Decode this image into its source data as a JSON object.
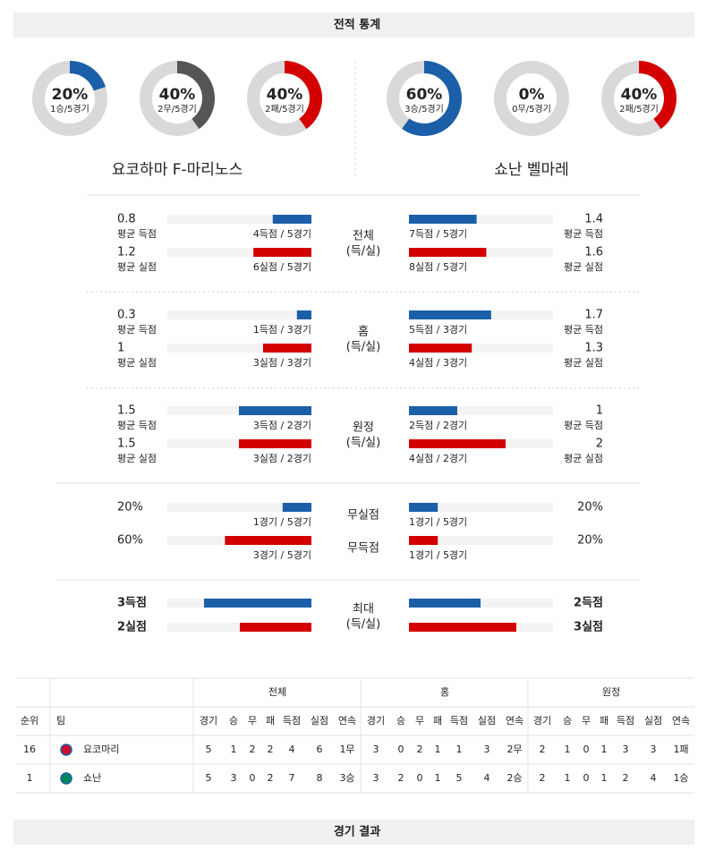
{
  "header": {
    "title": "전적 통계"
  },
  "teams": [
    {
      "name": "요코하마 F-마리노스",
      "donuts": [
        {
          "percent": {
            "value": 20,
            "label": "20%"
          },
          "record": "1승/5경기",
          "color": "#1a5fa8"
        },
        {
          "percent": {
            "value": 40,
            "label": "40%"
          },
          "record": "2무/5경기",
          "color": "#555555"
        },
        {
          "percent": {
            "value": 40,
            "label": "40%"
          },
          "record": "2패/5경기",
          "color": "#d40000"
        }
      ]
    },
    {
      "name": "쇼난 벨마레",
      "donuts": [
        {
          "percent": {
            "value": 60,
            "label": "60%"
          },
          "record": "3승/5경기",
          "color": "#1a5fa8"
        },
        {
          "percent": {
            "value": 0,
            "label": "0%"
          },
          "record": "0무/5경기",
          "color": "#555555"
        },
        {
          "percent": {
            "value": 40,
            "label": "40%"
          },
          "record": "2패/5경기",
          "color": "#d40000"
        }
      ]
    }
  ],
  "stats": [
    {
      "label": [
        "전체",
        "(득/실)"
      ],
      "rows": [
        {
          "color": "#1a5fa8",
          "left": {
            "value": 0.8,
            "caption": "평균 득점",
            "detail": "4득점 / 5경기"
          },
          "right": {
            "value": 1.4,
            "caption": "평균 득점",
            "detail": "7득점 / 5경기"
          }
        },
        {
          "color": "#d40000",
          "left": {
            "value": 1.2,
            "caption": "평균 실점",
            "detail": "6실점 / 5경기"
          },
          "right": {
            "value": 1.6,
            "caption": "평균 실점",
            "detail": "8실점 / 5경기"
          }
        }
      ]
    },
    {
      "label": [
        "홈",
        "(득/실)"
      ],
      "rows": [
        {
          "color": "#1a5fa8",
          "left": {
            "value": 0.3,
            "caption": "평균 득점",
            "detail": "1득점 / 3경기"
          },
          "right": {
            "value": 1.7,
            "caption": "평균 득점",
            "detail": "5득점 / 3경기"
          }
        },
        {
          "color": "#d40000",
          "left": {
            "value": 1,
            "caption": "평균 실점",
            "detail": "3실점 / 3경기"
          },
          "right": {
            "value": 1.3,
            "caption": "평균 실점",
            "detail": "4실점 / 3경기"
          }
        }
      ]
    },
    {
      "label": [
        "원정",
        "(득/실)"
      ],
      "rows": [
        {
          "color": "#1a5fa8",
          "left": {
            "value": 1.5,
            "caption": "평균 득점",
            "detail": "3득점 / 2경기"
          },
          "right": {
            "value": 1,
            "caption": "평균 득점",
            "detail": "2득점 / 2경기"
          }
        },
        {
          "color": "#d40000",
          "left": {
            "value": 1.5,
            "caption": "평균 실점",
            "detail": "3실점 / 2경기"
          },
          "right": {
            "value": 2,
            "caption": "평균 실점",
            "detail": "4실점 / 2경기"
          }
        }
      ]
    },
    {
      "rows": [
        {
          "label": "무실점",
          "color": "#1a5fa8",
          "left": {
            "value": {
              "value": 20,
              "label": "20%"
            },
            "detail": "1경기 / 5경기"
          },
          "right": {
            "value": {
              "value": 20,
              "label": "20%"
            },
            "detail": "1경기 / 5경기"
          }
        },
        {
          "label": "무득점",
          "color": "#d40000",
          "left": {
            "value": {
              "value": 60,
              "label": "60%"
            },
            "detail": "3경기 / 5경기"
          },
          "right": {
            "value": {
              "value": 20,
              "label": "20%"
            },
            "detail": "1경기 / 5경기"
          }
        }
      ]
    },
    {
      "label": [
        "최대",
        "(득/실)"
      ],
      "rows": [
        {
          "color": "#1a5fa8",
          "left": {
            "value": {
              "value": 3,
              "label": "3득점"
            }
          },
          "right": {
            "value": {
              "value": 2,
              "label": "2득점"
            }
          }
        },
        {
          "color": "#d40000",
          "left": {
            "value": {
              "value": 2,
              "label": "2실점"
            }
          },
          "right": {
            "value": {
              "value": 3,
              "label": "3실점"
            }
          }
        }
      ]
    }
  ],
  "table": {
    "columns": [
      "순위",
      "팀"
    ],
    "groups": [
      {
        "name": "전체",
        "columns": [
          "경기",
          "승",
          "무",
          "패",
          "득점",
          "실점",
          "연속"
        ]
      },
      {
        "name": "홈",
        "columns": [
          "경기",
          "승",
          "무",
          "패",
          "득점",
          "실점",
          "연속"
        ]
      },
      {
        "name": "원정",
        "columns": [
          "경기",
          "승",
          "무",
          "패",
          "득점",
          "실점",
          "연속"
        ]
      }
    ],
    "rows": [
      [
        16,
        "요코마리",
        5,
        1,
        2,
        2,
        4,
        6,
        "1무",
        3,
        0,
        2,
        1,
        1,
        3,
        "2무",
        2,
        1,
        0,
        1,
        3,
        3,
        "1패"
      ],
      [
        1,
        "쇼난",
        5,
        3,
        0,
        2,
        7,
        8,
        "3승",
        3,
        2,
        0,
        1,
        5,
        4,
        "2승",
        2,
        1,
        0,
        1,
        2,
        4,
        "1승"
      ]
    ]
  },
  "footer": {
    "title": "경기 결과"
  }
}
